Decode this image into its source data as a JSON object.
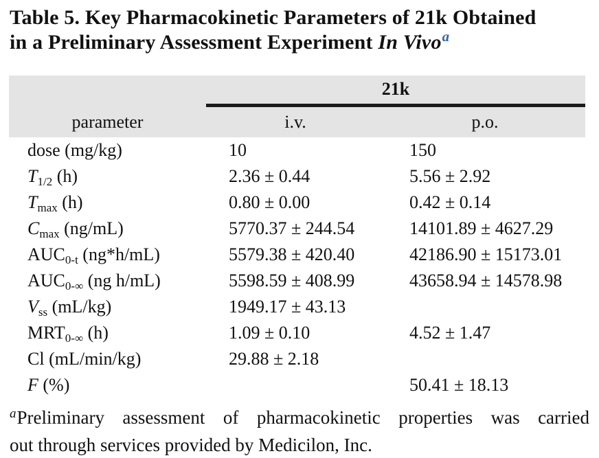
{
  "title": {
    "line1": "Table 5. Key Pharmacokinetic Parameters of 21k Obtained",
    "line2_prefix": "in a Preliminary Assessment Experiment ",
    "line2_italic": "In Vivo",
    "superscript": "a"
  },
  "table": {
    "group_header": "21k",
    "columns": {
      "param": "parameter",
      "iv": "i.v.",
      "po": "p.o."
    },
    "rows": [
      {
        "sym": "dose",
        "sub": "",
        "rest": " (mg/kg)",
        "iv": "10",
        "po": "150"
      },
      {
        "sym": "T",
        "sub": "1/2",
        "rest": " (h)",
        "iv": "2.36 ± 0.44",
        "po": "5.56 ± 2.92"
      },
      {
        "sym": "T",
        "sub": "max",
        "rest": " (h)",
        "iv": "0.80 ± 0.00",
        "po": "0.42 ± 0.14"
      },
      {
        "sym": "C",
        "sub": "max",
        "rest": " (ng/mL)",
        "iv": "5770.37 ± 244.54",
        "po": "14101.89 ± 4627.29"
      },
      {
        "sym": "AUC",
        "sub": "0-t",
        "rest": " (ng*h/mL)",
        "iv": "5579.38 ± 420.40",
        "po": "42186.90 ± 15173.01"
      },
      {
        "sym": "AUC",
        "sub": "0-∞",
        "rest": " (ng h/mL)",
        "iv": "5598.59 ± 408.99",
        "po": "43658.94 ± 14578.98"
      },
      {
        "sym": "V",
        "sub": "ss",
        "rest": " (mL/kg)",
        "iv": "1949.17 ± 43.13",
        "po": ""
      },
      {
        "sym": "MRT",
        "sub": "0-∞",
        "rest": " (h)",
        "iv": "1.09 ± 0.10",
        "po": "4.52 ± 1.47"
      },
      {
        "sym": "Cl",
        "sub": "",
        "rest": " (mL/min/kg)",
        "iv": "29.88 ± 2.18",
        "po": ""
      },
      {
        "sym": "F",
        "sub": "",
        "rest": " (%)",
        "iv": "",
        "po": "50.41 ± 18.13"
      }
    ]
  },
  "footnote": {
    "marker": "a",
    "line1": "Preliminary assessment of pharmacokinetic properties was carried",
    "line2": "out through services provided by Medicilon, Inc."
  },
  "colors": {
    "header_bg": "#e4e4e4",
    "rule": "#1c1c1c",
    "superscript_blue": "#3465a4",
    "text": "#111111"
  }
}
